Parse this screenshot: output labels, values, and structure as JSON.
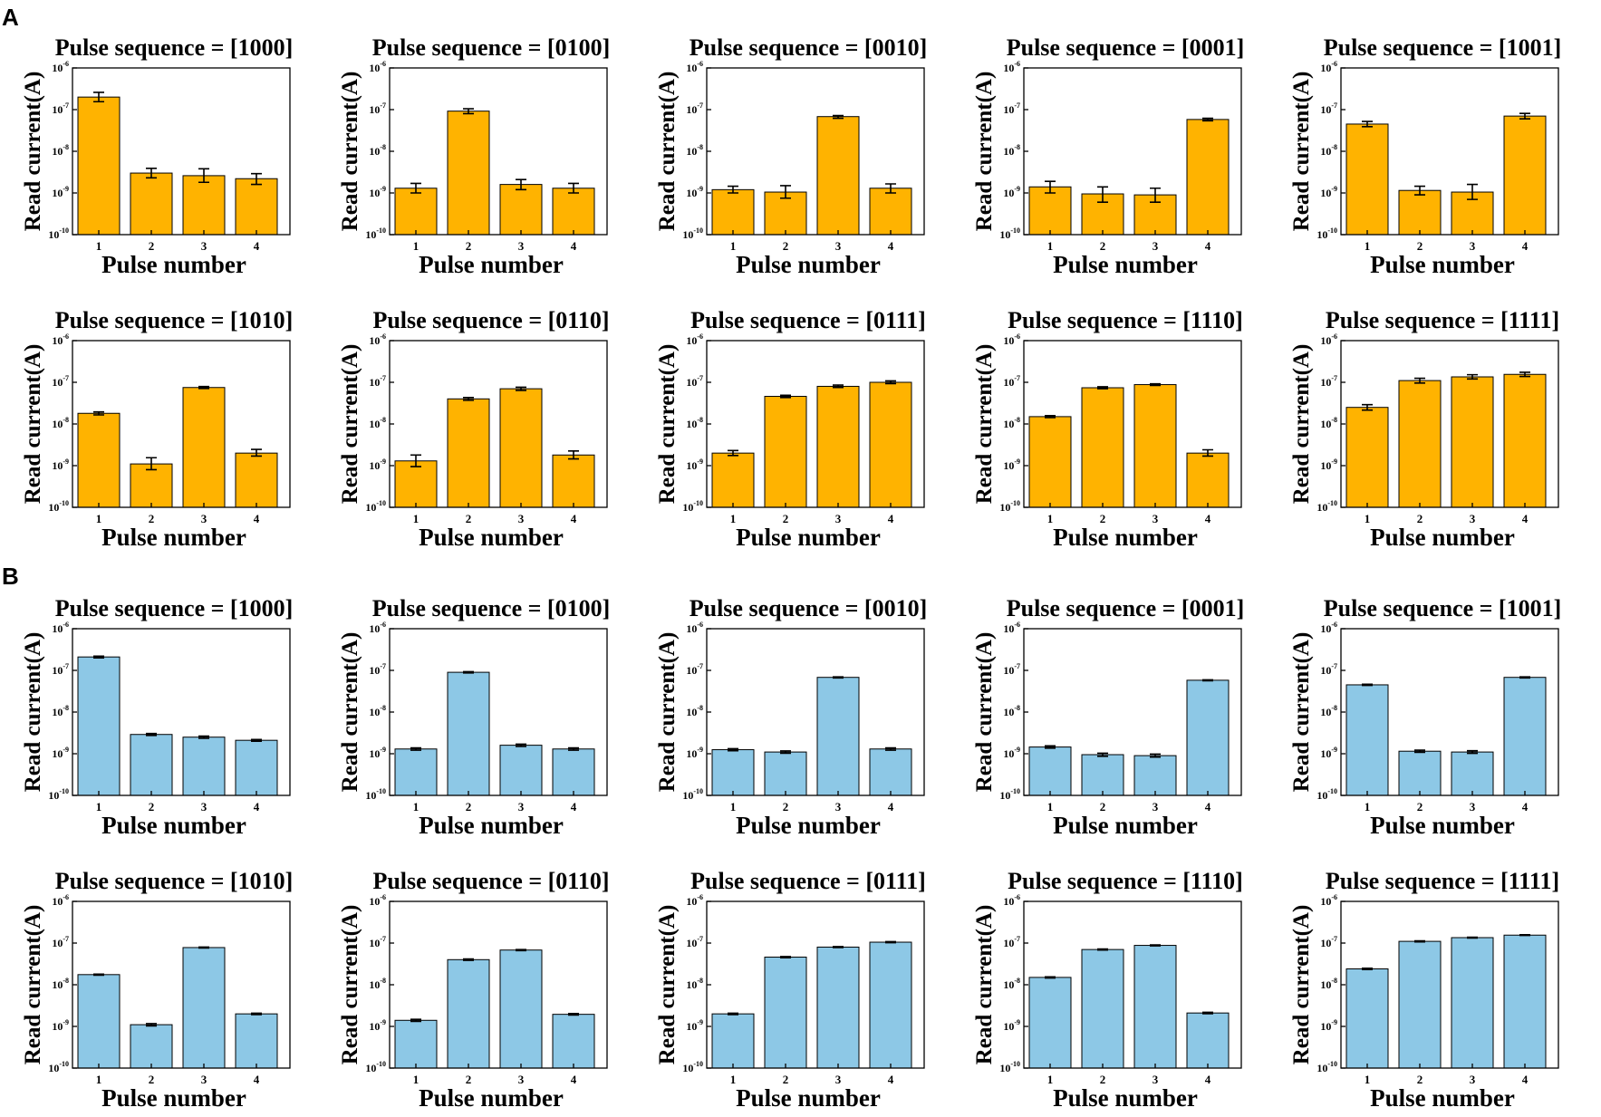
{
  "panel_labels": [
    "A",
    "B"
  ],
  "colors": {
    "panel_a_bar": "#FFB300",
    "panel_b_bar": "#8DC8E6",
    "axis": "#000000"
  },
  "chart_data": [
    {
      "panel": "A",
      "type": "bar",
      "yscale": "log",
      "ylim": [
        1e-10,
        1e-06
      ],
      "xlabel": "Pulse number",
      "ylabel": "Read current(A)",
      "categories": [
        "1",
        "2",
        "3",
        "4"
      ],
      "ytick_labels": [
        "10^-10",
        "10^-9",
        "10^-8",
        "10^-7",
        "10^-6"
      ],
      "subplots": [
        {
          "title": "Pulse sequence = [1000]",
          "values": [
            2e-07,
            3e-09,
            2.6e-09,
            2.2e-09
          ],
          "errors_low": [
            1.55e-07,
            2.3e-09,
            1.8e-09,
            1.6e-09
          ],
          "errors_high": [
            2.6e-07,
            3.9e-09,
            3.8e-09,
            2.9e-09
          ]
        },
        {
          "title": "Pulse sequence = [0100]",
          "values": [
            1.3e-09,
            9.2e-08,
            1.6e-09,
            1.3e-09
          ],
          "errors_low": [
            1e-09,
            8e-08,
            1.2e-09,
            1e-09
          ],
          "errors_high": [
            1.7e-09,
            1.05e-07,
            2.1e-09,
            1.7e-09
          ]
        },
        {
          "title": "Pulse sequence = [0010]",
          "values": [
            1.2e-09,
            1.05e-09,
            6.8e-08,
            1.3e-09
          ],
          "errors_low": [
            1e-09,
            7.5e-10,
            6.2e-08,
            1e-09
          ],
          "errors_high": [
            1.45e-09,
            1.5e-09,
            7.2e-08,
            1.65e-09
          ]
        },
        {
          "title": "Pulse sequence = [0001]",
          "values": [
            1.4e-09,
            9.5e-10,
            9e-10,
            5.8e-08
          ],
          "errors_low": [
            1e-09,
            6e-10,
            6e-10,
            5.4e-08
          ],
          "errors_high": [
            1.9e-09,
            1.4e-09,
            1.3e-09,
            6.2e-08
          ]
        },
        {
          "title": "Pulse sequence = [1001]",
          "values": [
            4.5e-08,
            1.15e-09,
            1.05e-09,
            7e-08
          ],
          "errors_low": [
            3.9e-08,
            9e-10,
            7e-10,
            6e-08
          ],
          "errors_high": [
            5.2e-08,
            1.45e-09,
            1.6e-09,
            8.1e-08
          ]
        },
        {
          "title": "Pulse sequence = [1010]",
          "values": [
            1.8e-08,
            1.1e-09,
            7.5e-08,
            2e-09
          ],
          "errors_low": [
            1.65e-08,
            8e-10,
            7.1e-08,
            1.7e-09
          ],
          "errors_high": [
            1.95e-08,
            1.55e-09,
            7.9e-08,
            2.45e-09
          ]
        },
        {
          "title": "Pulse sequence = [0110]",
          "values": [
            1.3e-09,
            4e-08,
            7e-08,
            1.8e-09
          ],
          "errors_low": [
            9.5e-10,
            3.7e-08,
            6.4e-08,
            1.45e-09
          ],
          "errors_high": [
            1.8e-09,
            4.3e-08,
            7.6e-08,
            2.25e-09
          ]
        },
        {
          "title": "Pulse sequence = [0111]",
          "values": [
            2e-09,
            4.6e-08,
            8e-08,
            1e-07
          ],
          "errors_low": [
            1.75e-09,
            4.3e-08,
            7.5e-08,
            9.3e-08
          ],
          "errors_high": [
            2.3e-09,
            4.9e-08,
            8.6e-08,
            1.08e-07
          ]
        },
        {
          "title": "Pulse sequence = [1110]",
          "values": [
            1.5e-08,
            7.4e-08,
            8.8e-08,
            2e-09
          ],
          "errors_low": [
            1.42e-08,
            7e-08,
            8.4e-08,
            1.7e-09
          ],
          "errors_high": [
            1.58e-08,
            7.8e-08,
            9.2e-08,
            2.4e-09
          ]
        },
        {
          "title": "Pulse sequence = [1111]",
          "values": [
            2.5e-08,
            1.1e-07,
            1.35e-07,
            1.55e-07
          ],
          "errors_low": [
            2.15e-08,
            9.6e-08,
            1.2e-07,
            1.38e-07
          ],
          "errors_high": [
            2.9e-08,
            1.25e-07,
            1.52e-07,
            1.74e-07
          ]
        }
      ]
    },
    {
      "panel": "B",
      "type": "bar",
      "yscale": "log",
      "ylim": [
        1e-10,
        1e-06
      ],
      "xlabel": "Pulse number",
      "ylabel": "Read current(A)",
      "categories": [
        "1",
        "2",
        "3",
        "4"
      ],
      "ytick_labels": [
        "10^-10",
        "10^-9",
        "10^-8",
        "10^-7",
        "10^-6"
      ],
      "subplots": [
        {
          "title": "Pulse sequence = [1000]",
          "values": [
            2.1e-07,
            2.9e-09,
            2.5e-09,
            2.1e-09
          ],
          "errors_low": [
            2e-07,
            2.75e-09,
            2.35e-09,
            2e-09
          ],
          "errors_high": [
            2.2e-07,
            3.05e-09,
            2.65e-09,
            2.2e-09
          ]
        },
        {
          "title": "Pulse sequence = [0100]",
          "values": [
            1.3e-09,
            9e-08,
            1.6e-09,
            1.3e-09
          ],
          "errors_low": [
            1.22e-09,
            8.7e-08,
            1.5e-09,
            1.22e-09
          ],
          "errors_high": [
            1.38e-09,
            9.3e-08,
            1.7e-09,
            1.38e-09
          ]
        },
        {
          "title": "Pulse sequence = [0010]",
          "values": [
            1.25e-09,
            1.1e-09,
            6.8e-08,
            1.3e-09
          ],
          "errors_low": [
            1.18e-09,
            1.03e-09,
            6.6e-08,
            1.22e-09
          ],
          "errors_high": [
            1.32e-09,
            1.17e-09,
            7e-08,
            1.38e-09
          ]
        },
        {
          "title": "Pulse sequence = [0001]",
          "values": [
            1.45e-09,
            9.5e-10,
            9e-10,
            5.8e-08
          ],
          "errors_low": [
            1.36e-09,
            8.7e-10,
            8.3e-10,
            5.65e-08
          ],
          "errors_high": [
            1.55e-09,
            1.03e-09,
            9.8e-10,
            5.95e-08
          ]
        },
        {
          "title": "Pulse sequence = [1001]",
          "values": [
            4.5e-08,
            1.15e-09,
            1.1e-09,
            6.8e-08
          ],
          "errors_low": [
            4.35e-08,
            1.08e-09,
            1.02e-09,
            6.6e-08
          ],
          "errors_high": [
            4.65e-08,
            1.22e-09,
            1.18e-09,
            7e-08
          ]
        },
        {
          "title": "Pulse sequence = [1010]",
          "values": [
            1.75e-08,
            1.1e-09,
            7.8e-08,
            2e-09
          ],
          "errors_low": [
            1.7e-08,
            1.03e-09,
            7.6e-08,
            1.92e-09
          ],
          "errors_high": [
            1.8e-08,
            1.17e-09,
            8e-08,
            2.08e-09
          ]
        },
        {
          "title": "Pulse sequence = [0110]",
          "values": [
            1.4e-09,
            4e-08,
            6.8e-08,
            1.95e-09
          ],
          "errors_low": [
            1.32e-09,
            3.85e-08,
            6.6e-08,
            1.87e-09
          ],
          "errors_high": [
            1.48e-09,
            4.15e-08,
            7e-08,
            2.03e-09
          ]
        },
        {
          "title": "Pulse sequence = [0111]",
          "values": [
            2e-09,
            4.6e-08,
            8e-08,
            1.05e-07
          ],
          "errors_low": [
            1.92e-09,
            4.45e-08,
            7.8e-08,
            1.02e-07
          ],
          "errors_high": [
            2.08e-09,
            4.75e-08,
            8.2e-08,
            1.08e-07
          ]
        },
        {
          "title": "Pulse sequence = [1110]",
          "values": [
            1.5e-08,
            7e-08,
            8.8e-08,
            2.1e-09
          ],
          "errors_low": [
            1.45e-08,
            6.8e-08,
            8.6e-08,
            2.02e-09
          ],
          "errors_high": [
            1.55e-08,
            7.2e-08,
            9e-08,
            2.18e-09
          ]
        },
        {
          "title": "Pulse sequence = [1111]",
          "values": [
            2.4e-08,
            1.1e-07,
            1.35e-07,
            1.55e-07
          ],
          "errors_low": [
            2.32e-08,
            1.07e-07,
            1.32e-07,
            1.52e-07
          ],
          "errors_high": [
            2.48e-08,
            1.13e-07,
            1.38e-07,
            1.58e-07
          ]
        }
      ]
    }
  ]
}
